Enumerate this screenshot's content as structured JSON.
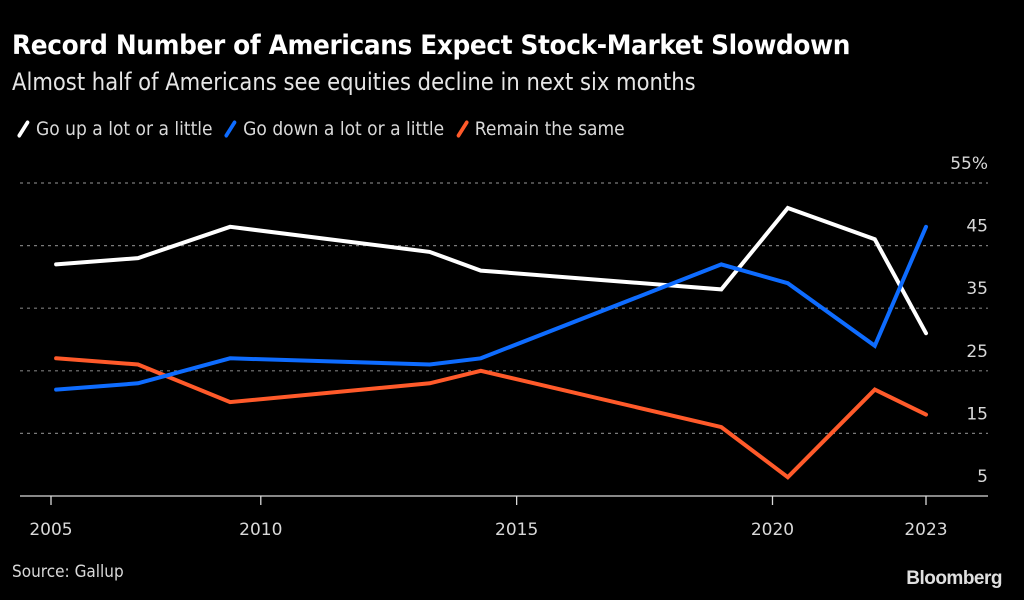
{
  "chart_data": {
    "type": "line",
    "title": "Record Number of Americans Expect Stock-Market Slowdown",
    "subtitle": "Almost half of Americans see equities decline in next six months",
    "xlabel": "",
    "ylabel": "",
    "x": [
      2006.0,
      2007.6,
      2009.4,
      2013.3,
      2014.3,
      2019.0,
      2020.3,
      2022.0,
      2023.0
    ],
    "x_ticks": [
      {
        "label": "2005",
        "value": 2005.9
      },
      {
        "label": "2010",
        "value": 2010
      },
      {
        "label": "2015",
        "value": 2015
      },
      {
        "label": "2020",
        "value": 2020
      },
      {
        "label": "2023",
        "value": 2023
      }
    ],
    "xlim": [
      2005.9,
      2024.1
    ],
    "ylim": [
      5,
      55
    ],
    "y_ticks": [
      {
        "label": "55%",
        "value": 55
      },
      {
        "label": "45",
        "value": 45
      },
      {
        "label": "35",
        "value": 35
      },
      {
        "label": "25",
        "value": 25
      },
      {
        "label": "15",
        "value": 15
      },
      {
        "label": "5",
        "value": 5
      }
    ],
    "grid": true,
    "legend_position": "top-left",
    "series": [
      {
        "name": "Go up a lot or a little",
        "color": "#ffffff",
        "values": [
          42,
          43,
          48,
          44,
          41,
          38,
          51,
          46,
          31
        ]
      },
      {
        "name": "Go down a lot or a little",
        "color": "#0e6cff",
        "values": [
          22,
          23,
          27,
          26,
          27,
          42,
          39,
          29,
          48
        ]
      },
      {
        "name": "Remain the same",
        "color": "#ff5a2a",
        "values": [
          27,
          26,
          20,
          23,
          25,
          16,
          8,
          22,
          18
        ]
      }
    ]
  },
  "footer": {
    "source": "Source: Gallup",
    "brand": "Bloomberg"
  },
  "colors": {
    "background": "#000000",
    "grid": "#7a7a7a",
    "axis": "#d9d9d9"
  }
}
